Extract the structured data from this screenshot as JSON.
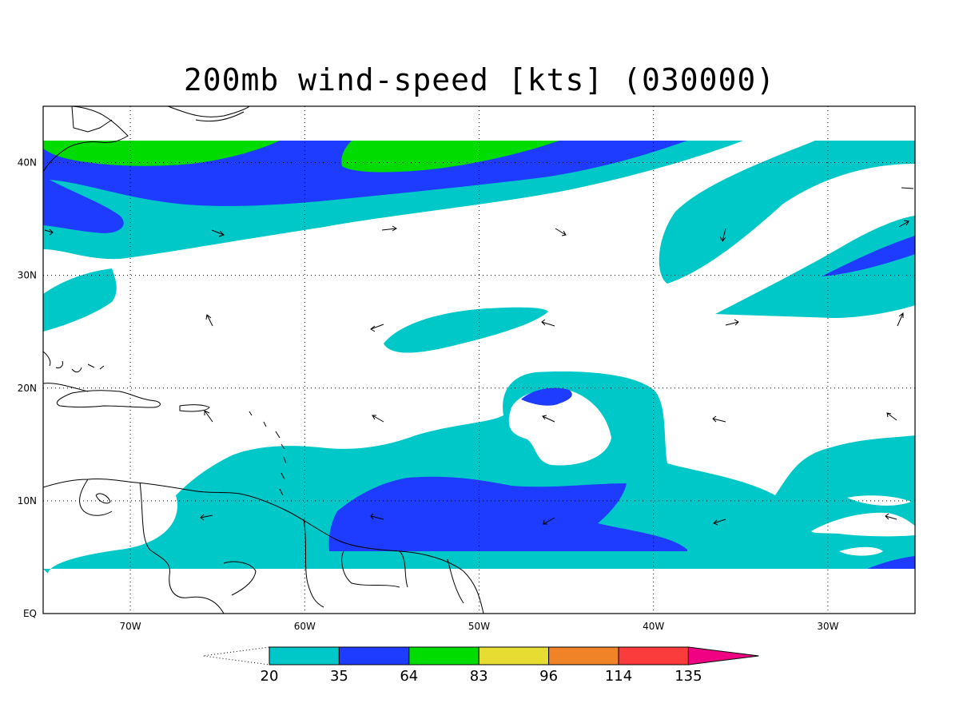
{
  "title": "200mb wind-speed [kts] (030000)",
  "map": {
    "lon_range": [
      -75,
      -25
    ],
    "lat_range": [
      0,
      45
    ],
    "lon_ticks": [
      {
        "value": -70,
        "label": "70W"
      },
      {
        "value": -60,
        "label": "60W"
      },
      {
        "value": -50,
        "label": "50W"
      },
      {
        "value": -40,
        "label": "40W"
      },
      {
        "value": -30,
        "label": "30W"
      }
    ],
    "lat_ticks": [
      {
        "value": 0,
        "label": "EQ"
      },
      {
        "value": 10,
        "label": "10N"
      },
      {
        "value": 20,
        "label": "20N"
      },
      {
        "value": 30,
        "label": "30N"
      },
      {
        "value": 40,
        "label": "40N"
      }
    ],
    "grid": true,
    "wind_barbs_shown": true
  },
  "colorbar": {
    "thresholds": [
      "20",
      "35",
      "64",
      "83",
      "96",
      "114",
      "135"
    ],
    "colors": [
      "#00c8c8",
      "#1e3cff",
      "#00dc00",
      "#e6dc32",
      "#f08228",
      "#fa3c3c",
      "#f00082"
    ],
    "under_color": "#ffffff"
  },
  "colors": {
    "cyan": "#00c8c8",
    "blue": "#1e3cff",
    "green": "#00dc00"
  }
}
